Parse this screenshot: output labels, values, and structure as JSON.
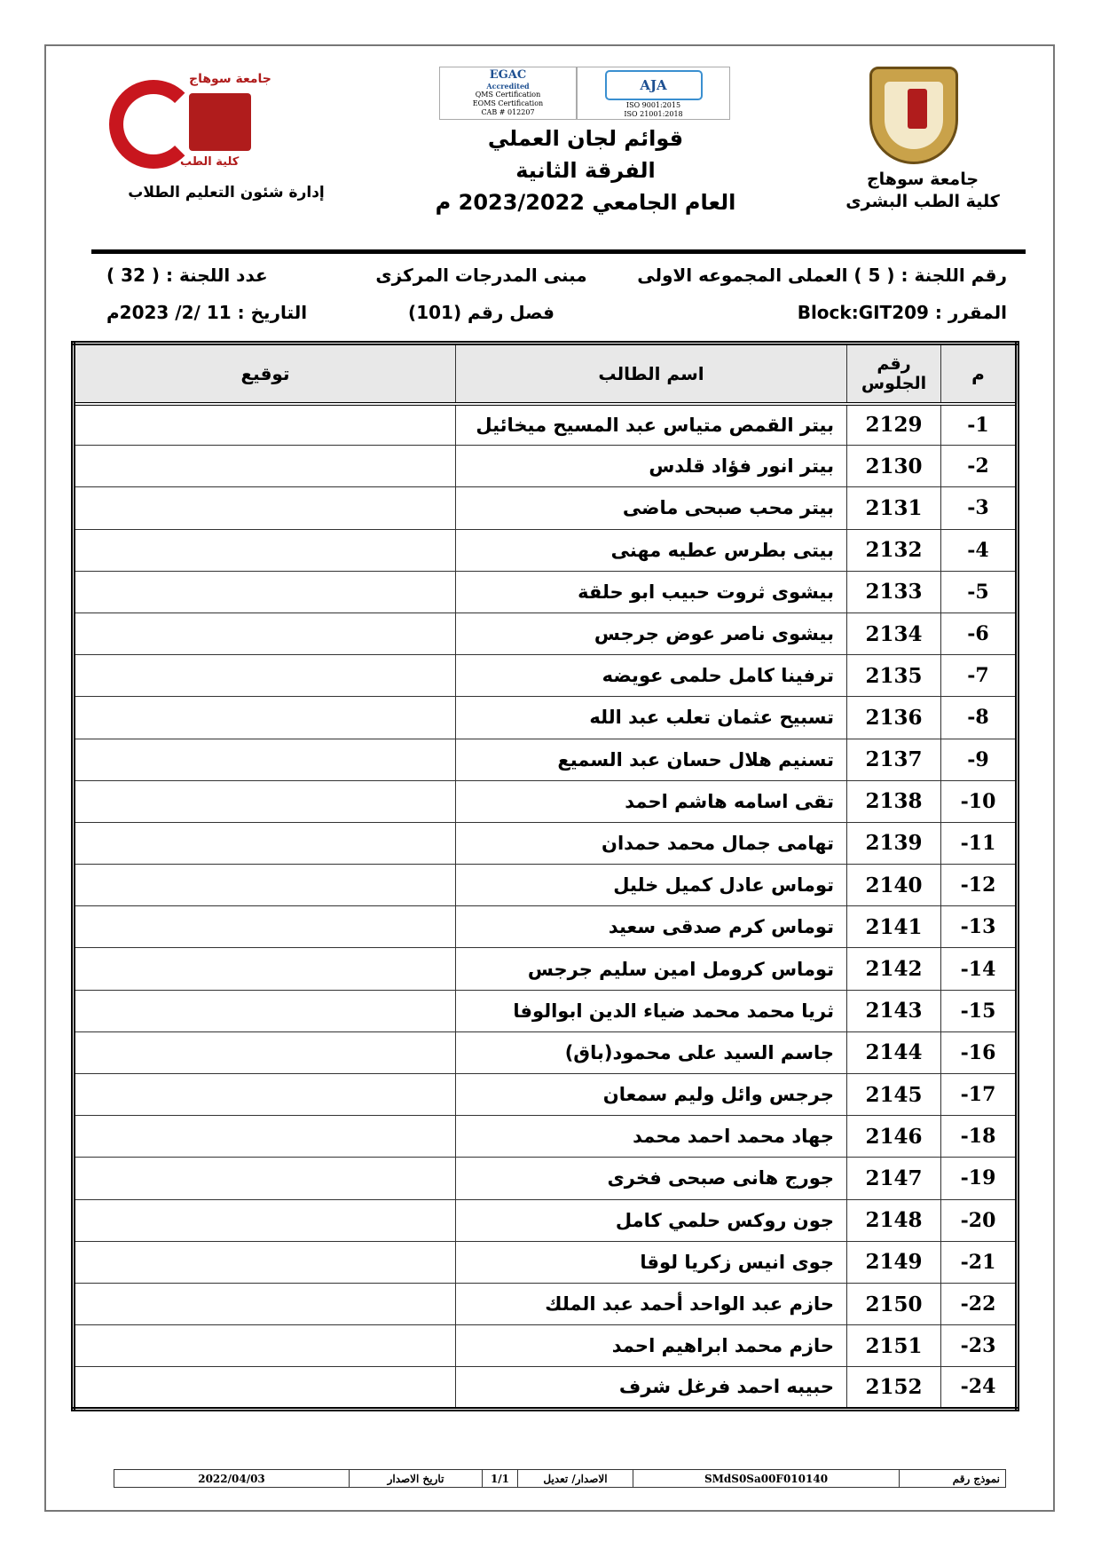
{
  "header": {
    "university_right": "جامعة سوهاج",
    "faculty_right": "كلية الطب البشرى",
    "title_line1": "قوائم لجان العملي",
    "title_line2": "الفرقة الثانية",
    "title_line3": "العام الجامعي 2023/2022 م",
    "dept_left": "إدارة شئون التعليم الطلاب",
    "left_logo_text_top": "جامعة سوهاج",
    "left_logo_text_bottom": "كلية الطب",
    "accreditation": {
      "egac": "EGAC",
      "egac_sub": "Accredited",
      "egac_lines": [
        "QMS Certification",
        "EOMS Certification",
        "CAB # 012207"
      ],
      "aja": "AJA",
      "aja_lines": [
        "ISO 9001:2015",
        "ISO 21001:2018"
      ]
    }
  },
  "info": {
    "committee_no": "رقم اللجنة : ( 5 ) العملى المجموعه الاولى",
    "building": "مبنى المدرجات المركزى",
    "committee_count": "عدد اللجنة : ( 32 )",
    "course": "المقرر :  Block:GIT209",
    "room": "فصل رقم (101)",
    "date": "التاريخ :  11 /2/ 2023م"
  },
  "table": {
    "headers": {
      "no": "م",
      "seat": "رقم الجلوس",
      "name": "اسم الطالب",
      "sign": "توقيع"
    },
    "rows": [
      {
        "no": "-1",
        "seat": "2129",
        "name": "بيتر القمص متياس عبد المسيح ميخائيل"
      },
      {
        "no": "-2",
        "seat": "2130",
        "name": "بيتر انور فؤاد قلدس"
      },
      {
        "no": "-3",
        "seat": "2131",
        "name": "بيتر محب صبحى ماضى"
      },
      {
        "no": "-4",
        "seat": "2132",
        "name": "بيتى بطرس عطيه مهنى"
      },
      {
        "no": "-5",
        "seat": "2133",
        "name": "بيشوى ثروت حبيب ابو حلقة"
      },
      {
        "no": "-6",
        "seat": "2134",
        "name": "بيشوى ناصر عوض جرجس"
      },
      {
        "no": "-7",
        "seat": "2135",
        "name": "ترفينا كامل حلمى عويضه"
      },
      {
        "no": "-8",
        "seat": "2136",
        "name": "تسبيح عثمان تعلب عبد الله"
      },
      {
        "no": "-9",
        "seat": "2137",
        "name": "تسنيم هلال حسان عبد السميع"
      },
      {
        "no": "-10",
        "seat": "2138",
        "name": "تقى اسامه هاشم احمد"
      },
      {
        "no": "-11",
        "seat": "2139",
        "name": "تهامى جمال محمد حمدان"
      },
      {
        "no": "-12",
        "seat": "2140",
        "name": "توماس عادل كميل خليل"
      },
      {
        "no": "-13",
        "seat": "2141",
        "name": "توماس كرم صدقى سعيد"
      },
      {
        "no": "-14",
        "seat": "2142",
        "name": "توماس كرومل امين سليم جرجس"
      },
      {
        "no": "-15",
        "seat": "2143",
        "name": "ثريا محمد محمد ضياء الدين ابوالوفا"
      },
      {
        "no": "-16",
        "seat": "2144",
        "name": "جاسم السيد على محمود(باق)"
      },
      {
        "no": "-17",
        "seat": "2145",
        "name": "جرجس وائل وليم سمعان"
      },
      {
        "no": "-18",
        "seat": "2146",
        "name": "جهاد محمد احمد محمد"
      },
      {
        "no": "-19",
        "seat": "2147",
        "name": "جورج هانى صبحى فخرى"
      },
      {
        "no": "-20",
        "seat": "2148",
        "name": "جون روكس حلمي كامل"
      },
      {
        "no": "-21",
        "seat": "2149",
        "name": "جوى انيس زكريا لوقا"
      },
      {
        "no": "-22",
        "seat": "2150",
        "name": "حازم عبد الواحد أحمد عبد الملك"
      },
      {
        "no": "-23",
        "seat": "2151",
        "name": "حازم محمد ابراهيم احمد"
      },
      {
        "no": "-24",
        "seat": "2152",
        "name": "حبيبه احمد فرغل شرف"
      }
    ]
  },
  "footer": {
    "form_label": "نموذج رقم",
    "form_no": "SMdS0Sa00F010140",
    "version_label": "الاصدار/ تعديل",
    "version": "1/1",
    "issue_date_label": "تاريخ الاصدار",
    "issue_date": "2022/04/03"
  }
}
